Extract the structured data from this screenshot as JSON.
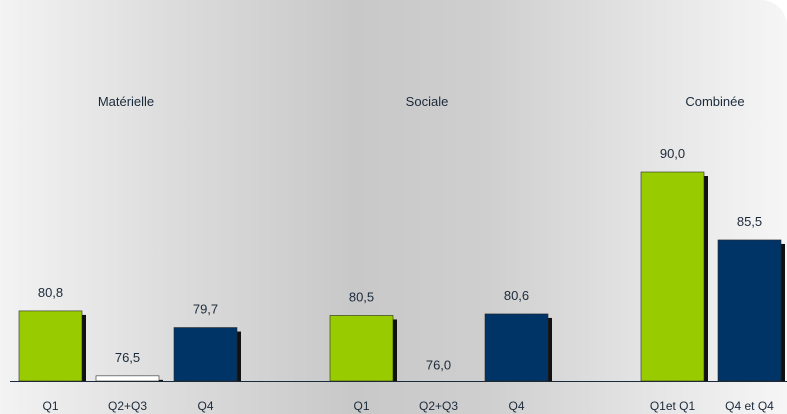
{
  "chart_data": {
    "type": "bar",
    "title": "",
    "xlabel": "",
    "ylabel": "",
    "ylim": [
      60,
      100
    ],
    "colors": {
      "green": "#99cc00",
      "white": "#ffffff",
      "navy": "#003366"
    },
    "groups": [
      {
        "name": "Matérielle",
        "bars": [
          {
            "label": "Q1",
            "value": 80.8,
            "value_text": "80,8",
            "color": "green"
          },
          {
            "label": "Q2+Q3",
            "value": 76.5,
            "value_text": "76,5",
            "color": "white"
          },
          {
            "label": "Q4",
            "value": 79.7,
            "value_text": "79,7",
            "color": "navy"
          }
        ]
      },
      {
        "name": "Sociale",
        "bars": [
          {
            "label": "Q1",
            "value": 80.5,
            "value_text": "80,5",
            "color": "green"
          },
          {
            "label": "Q2+Q3",
            "value": 76.0,
            "value_text": "76,0",
            "color": "white"
          },
          {
            "label": "Q4",
            "value": 80.6,
            "value_text": "80,6",
            "color": "navy"
          }
        ]
      },
      {
        "name": "Combinée",
        "bars": [
          {
            "label": "Q1et Q1",
            "value": 90.0,
            "value_text": "90,0",
            "color": "green"
          },
          {
            "label": "Q4 et Q4",
            "value": 85.5,
            "value_text": "85,5",
            "color": "navy"
          }
        ]
      }
    ]
  }
}
